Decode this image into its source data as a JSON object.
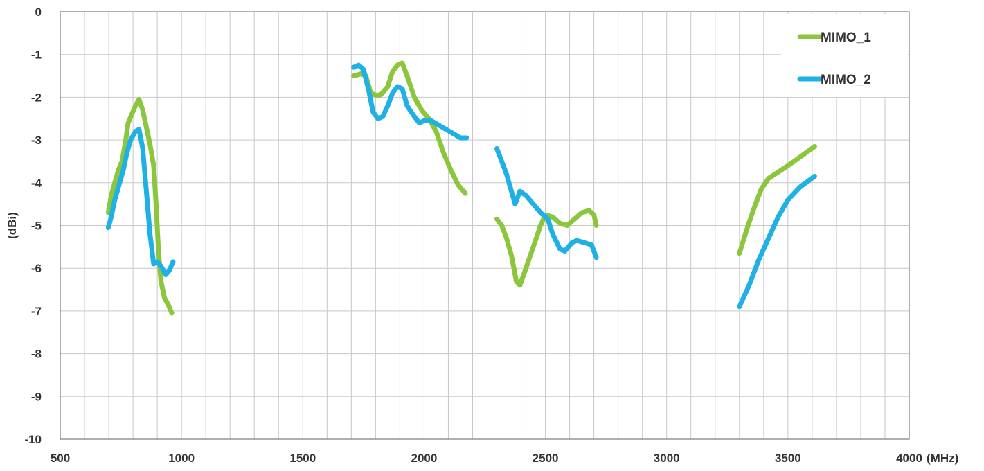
{
  "chart_data": {
    "type": "line",
    "title": "",
    "xlabel": "(MHz)",
    "ylabel": "(dBi)",
    "xlim": [
      500,
      4000
    ],
    "ylim": [
      -10,
      0
    ],
    "x_major_ticks": [
      500,
      1000,
      1500,
      2000,
      2500,
      3000,
      3500,
      4000
    ],
    "x_minor_step": 100,
    "y_ticks": [
      0,
      -1,
      -2,
      -3,
      -4,
      -5,
      -6,
      -7,
      -8,
      -9,
      -10
    ],
    "grid": true,
    "legend": "top-right",
    "series": [
      {
        "name": "MIMO_1",
        "color": "#8cc63f",
        "segments": [
          [
            [
              698,
              -4.7
            ],
            [
              710,
              -4.3
            ],
            [
              725,
              -4.0
            ],
            [
              740,
              -3.7
            ],
            [
              755,
              -3.5
            ],
            [
              770,
              -3.0
            ],
            [
              780,
              -2.6
            ],
            [
              795,
              -2.4
            ],
            [
              810,
              -2.2
            ],
            [
              825,
              -2.05
            ],
            [
              840,
              -2.3
            ],
            [
              855,
              -2.7
            ],
            [
              870,
              -3.1
            ],
            [
              885,
              -3.6
            ],
            [
              895,
              -4.5
            ],
            [
              905,
              -5.6
            ],
            [
              915,
              -6.3
            ],
            [
              930,
              -6.7
            ],
            [
              945,
              -6.85
            ],
            [
              960,
              -7.05
            ]
          ],
          [
            [
              1710,
              -1.5
            ],
            [
              1740,
              -1.45
            ],
            [
              1760,
              -1.5
            ],
            [
              1780,
              -1.9
            ],
            [
              1800,
              -1.95
            ],
            [
              1820,
              -1.95
            ],
            [
              1850,
              -1.75
            ],
            [
              1870,
              -1.4
            ],
            [
              1890,
              -1.25
            ],
            [
              1910,
              -1.2
            ],
            [
              1930,
              -1.5
            ],
            [
              1960,
              -2.0
            ],
            [
              1990,
              -2.3
            ],
            [
              2020,
              -2.5
            ],
            [
              2050,
              -2.8
            ],
            [
              2080,
              -3.3
            ],
            [
              2110,
              -3.7
            ],
            [
              2140,
              -4.05
            ],
            [
              2170,
              -4.25
            ]
          ],
          [
            [
              2300,
              -4.85
            ],
            [
              2320,
              -5.0
            ],
            [
              2340,
              -5.3
            ],
            [
              2360,
              -5.7
            ],
            [
              2380,
              -6.3
            ],
            [
              2395,
              -6.4
            ],
            [
              2420,
              -6.0
            ],
            [
              2450,
              -5.5
            ],
            [
              2480,
              -5.0
            ],
            [
              2500,
              -4.75
            ],
            [
              2530,
              -4.8
            ],
            [
              2560,
              -4.95
            ],
            [
              2590,
              -5.0
            ],
            [
              2620,
              -4.85
            ],
            [
              2650,
              -4.7
            ],
            [
              2680,
              -4.65
            ],
            [
              2700,
              -4.75
            ],
            [
              2710,
              -5.0
            ]
          ],
          [
            [
              3300,
              -5.65
            ],
            [
              3330,
              -5.1
            ],
            [
              3360,
              -4.6
            ],
            [
              3390,
              -4.15
            ],
            [
              3420,
              -3.9
            ],
            [
              3460,
              -3.75
            ],
            [
              3500,
              -3.6
            ],
            [
              3550,
              -3.4
            ],
            [
              3610,
              -3.15
            ]
          ]
        ]
      },
      {
        "name": "MIMO_2",
        "color": "#1fb0e6",
        "segments": [
          [
            [
              698,
              -5.05
            ],
            [
              710,
              -4.8
            ],
            [
              725,
              -4.4
            ],
            [
              745,
              -4.0
            ],
            [
              760,
              -3.7
            ],
            [
              775,
              -3.3
            ],
            [
              790,
              -3.0
            ],
            [
              810,
              -2.8
            ],
            [
              825,
              -2.75
            ],
            [
              840,
              -3.2
            ],
            [
              855,
              -4.2
            ],
            [
              870,
              -5.2
            ],
            [
              885,
              -5.9
            ],
            [
              900,
              -5.85
            ],
            [
              915,
              -5.95
            ],
            [
              935,
              -6.15
            ],
            [
              950,
              -6.05
            ],
            [
              965,
              -5.85
            ]
          ],
          [
            [
              1710,
              -1.3
            ],
            [
              1730,
              -1.25
            ],
            [
              1750,
              -1.35
            ],
            [
              1770,
              -1.8
            ],
            [
              1790,
              -2.35
            ],
            [
              1810,
              -2.5
            ],
            [
              1830,
              -2.45
            ],
            [
              1850,
              -2.2
            ],
            [
              1870,
              -1.9
            ],
            [
              1890,
              -1.75
            ],
            [
              1910,
              -1.8
            ],
            [
              1930,
              -2.2
            ],
            [
              1960,
              -2.45
            ],
            [
              1980,
              -2.6
            ],
            [
              2000,
              -2.55
            ],
            [
              2030,
              -2.55
            ],
            [
              2060,
              -2.65
            ],
            [
              2090,
              -2.75
            ],
            [
              2120,
              -2.85
            ],
            [
              2150,
              -2.95
            ],
            [
              2175,
              -2.95
            ]
          ],
          [
            [
              2300,
              -3.2
            ],
            [
              2320,
              -3.5
            ],
            [
              2340,
              -3.8
            ],
            [
              2360,
              -4.2
            ],
            [
              2375,
              -4.5
            ],
            [
              2395,
              -4.2
            ],
            [
              2420,
              -4.3
            ],
            [
              2450,
              -4.5
            ],
            [
              2480,
              -4.7
            ],
            [
              2510,
              -4.85
            ],
            [
              2530,
              -5.2
            ],
            [
              2560,
              -5.55
            ],
            [
              2580,
              -5.6
            ],
            [
              2610,
              -5.4
            ],
            [
              2630,
              -5.35
            ],
            [
              2660,
              -5.4
            ],
            [
              2690,
              -5.45
            ],
            [
              2710,
              -5.75
            ]
          ],
          [
            [
              3300,
              -6.9
            ],
            [
              3340,
              -6.4
            ],
            [
              3380,
              -5.8
            ],
            [
              3420,
              -5.3
            ],
            [
              3460,
              -4.8
            ],
            [
              3500,
              -4.4
            ],
            [
              3550,
              -4.1
            ],
            [
              3610,
              -3.85
            ]
          ]
        ]
      }
    ]
  }
}
